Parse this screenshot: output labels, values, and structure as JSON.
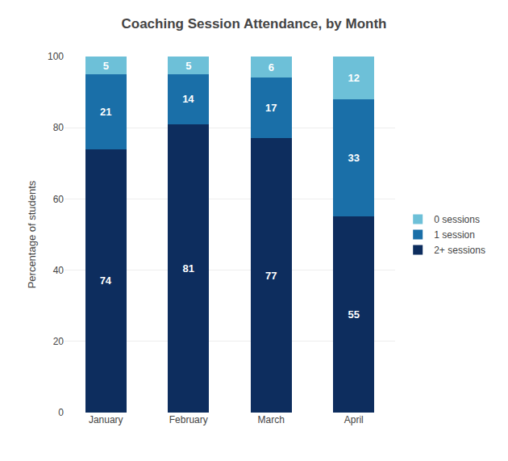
{
  "chart_data": {
    "type": "bar",
    "title": "Coaching Session Attendance, by Month",
    "categories": [
      "January",
      "February",
      "March",
      "April"
    ],
    "series": [
      {
        "name": "2+ sessions",
        "color": "#0d2d5e",
        "values": [
          74,
          81,
          77,
          55
        ]
      },
      {
        "name": "1 session",
        "color": "#1a6fa8",
        "values": [
          21,
          14,
          17,
          33
        ]
      },
      {
        "name": "0 sessions",
        "color": "#6dc0d8",
        "values": [
          5,
          5,
          6,
          12
        ]
      }
    ],
    "ylabel": "Percentage of students",
    "ylim": [
      0,
      100
    ],
    "yticks": [
      0,
      20,
      40,
      60,
      80,
      100
    ],
    "stacked": true,
    "data_labels": true,
    "grid": true,
    "legend": "right"
  }
}
